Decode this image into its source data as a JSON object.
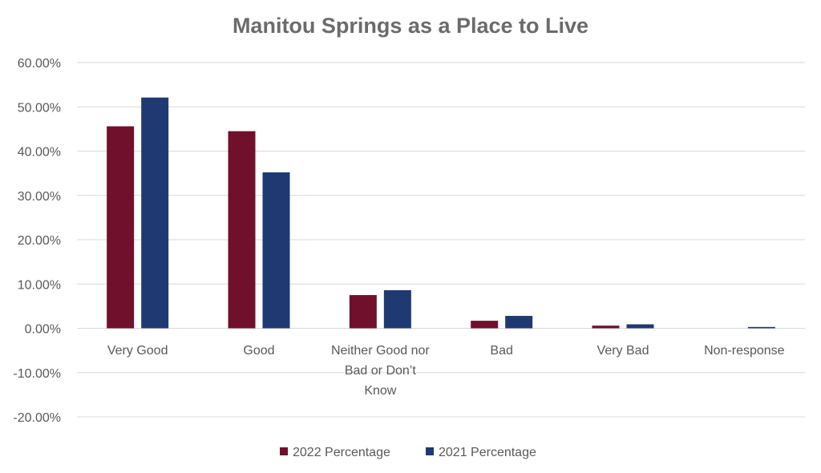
{
  "chart_data": {
    "type": "bar",
    "title": "Manitou Springs as a Place to Live",
    "xlabel": "",
    "ylabel": "",
    "ylim": [
      -0.2,
      0.6
    ],
    "y_ticks": [
      0.6,
      0.5,
      0.4,
      0.3,
      0.2,
      0.1,
      0.0,
      -0.1,
      -0.2
    ],
    "y_tick_labels": [
      "60.00%",
      "50.00%",
      "40.00%",
      "30.00%",
      "20.00%",
      "10.00%",
      "0.00%",
      "-10.00%",
      "-20.00%"
    ],
    "grid": true,
    "legend_position": "bottom",
    "categories": [
      [
        "Very Good"
      ],
      [
        "Good"
      ],
      [
        "Neither Good nor",
        "Bad or Don’t",
        "Know"
      ],
      [
        "Bad"
      ],
      [
        "Very Bad"
      ],
      [
        "Non-response"
      ]
    ],
    "series": [
      {
        "name": "2022 Percentage",
        "color": "#70102d",
        "values": [
          0.456,
          0.445,
          0.075,
          0.017,
          0.006,
          0.0
        ]
      },
      {
        "name": "2021 Percentage",
        "color": "#1f3a73",
        "values": [
          0.521,
          0.352,
          0.086,
          0.028,
          0.009,
          0.003
        ]
      }
    ]
  }
}
